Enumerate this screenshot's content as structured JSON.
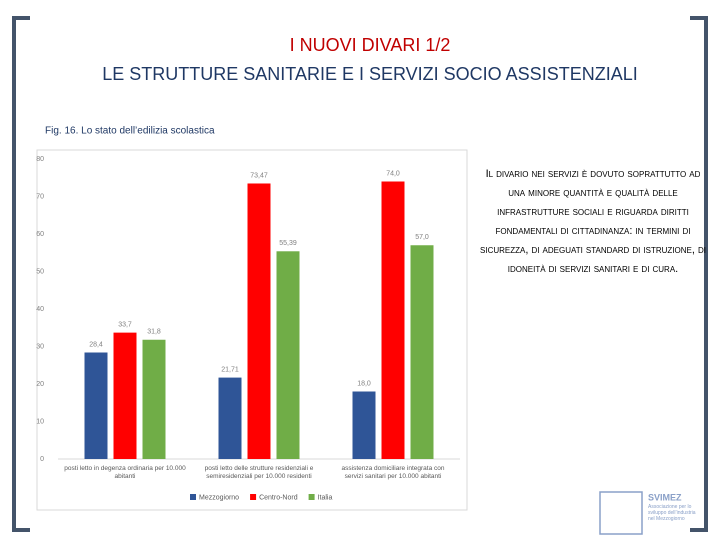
{
  "slide": {
    "title": "I NUOVI DIVARI 1/2",
    "subtitle": "LE STRUTTURE SANITARIE E I SERVIZI SOCIO ASSISTENZIALI",
    "caption": "Fig. 16. Lo stato dell’edilizia scolastica",
    "text": "Il divario nei servizi è dovuto soprattutto ad una minore quantità e qualità delle infrastrutture sociali e riguarda diritti fondamentali di cittadinanza: in termini di sicurezza, di adeguati standard di istruzione, di idoneità di servizi sanitari e di cura.",
    "logo": "SVIMEZ",
    "logo_text": "Associazione per lo sviluppo dell’industria nel Mezzogiorno"
  },
  "chart_data": {
    "type": "bar",
    "categories": [
      "posti letto in degenza ordinaria per 10.000 abitanti",
      "posti letto delle strutture residenziali e semiresidenziali per 10.000 residenti",
      "assistenza domiciliare integrata con servizi sanitari per 10.000 abitanti"
    ],
    "series": [
      {
        "name": "Mezzogiorno",
        "color": "#2f5597",
        "values": [
          28.4,
          21.71,
          18.0
        ],
        "value_labels": [
          "28,4",
          "21,71",
          "18,0"
        ]
      },
      {
        "name": "Centro-Nord",
        "color": "#ff0000",
        "values": [
          33.7,
          73.47,
          74.0
        ],
        "value_labels": [
          "33,7",
          "73,47",
          "74,0"
        ]
      },
      {
        "name": "Italia",
        "color": "#70ad47",
        "values": [
          31.8,
          55.39,
          57.0
        ],
        "value_labels": [
          "31,8",
          "55,39",
          "57,0"
        ]
      }
    ],
    "ylim": [
      0,
      80
    ],
    "yticks": [
      0,
      10,
      20,
      30,
      40,
      50,
      60,
      70,
      80
    ],
    "grid": false
  }
}
